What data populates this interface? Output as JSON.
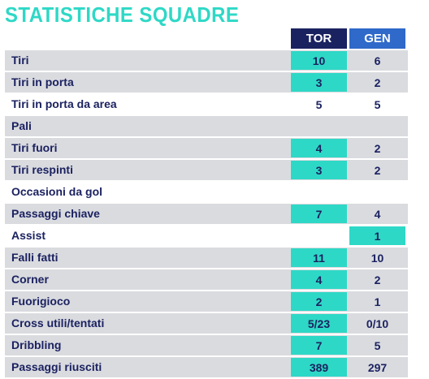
{
  "title": "STATISTICHE SQUADRE",
  "columns": {
    "home": "TOR",
    "away": "GEN"
  },
  "rows": [
    {
      "label": "Tiri",
      "home": "10",
      "away": "6",
      "shaded": true,
      "highlight": "home"
    },
    {
      "label": "Tiri in porta",
      "home": "3",
      "away": "2",
      "shaded": true,
      "highlight": "home"
    },
    {
      "label": "Tiri in porta da area",
      "home": "5",
      "away": "5",
      "shaded": false,
      "highlight": ""
    },
    {
      "label": "Pali",
      "home": "",
      "away": "",
      "shaded": true,
      "highlight": ""
    },
    {
      "label": "Tiri fuori",
      "home": "4",
      "away": "2",
      "shaded": true,
      "highlight": "home"
    },
    {
      "label": "Tiri respinti",
      "home": "3",
      "away": "2",
      "shaded": true,
      "highlight": "home"
    },
    {
      "label": "Occasioni da gol",
      "home": "",
      "away": "",
      "shaded": false,
      "highlight": ""
    },
    {
      "label": "Passaggi chiave",
      "home": "7",
      "away": "4",
      "shaded": true,
      "highlight": "home"
    },
    {
      "label": "Assist",
      "home": "",
      "away": "1",
      "shaded": false,
      "highlight": "away"
    },
    {
      "label": "Falli fatti",
      "home": "11",
      "away": "10",
      "shaded": true,
      "highlight": "home"
    },
    {
      "label": "Corner",
      "home": "4",
      "away": "2",
      "shaded": true,
      "highlight": "home"
    },
    {
      "label": "Fuorigioco",
      "home": "2",
      "away": "1",
      "shaded": true,
      "highlight": "home"
    },
    {
      "label": "Cross utili/tentati",
      "home": "5/23",
      "away": "0/10",
      "shaded": true,
      "highlight": "home"
    },
    {
      "label": "Dribbling",
      "home": "7",
      "away": "5",
      "shaded": true,
      "highlight": "home"
    },
    {
      "label": "Passaggi riusciti",
      "home": "389",
      "away": "297",
      "shaded": true,
      "highlight": "home"
    }
  ],
  "colors": {
    "accent": "#2ed8c6",
    "home_header": "#1b2260",
    "away_header": "#2f69c9",
    "row_shade": "#dadbdf",
    "text": "#1b2260"
  }
}
